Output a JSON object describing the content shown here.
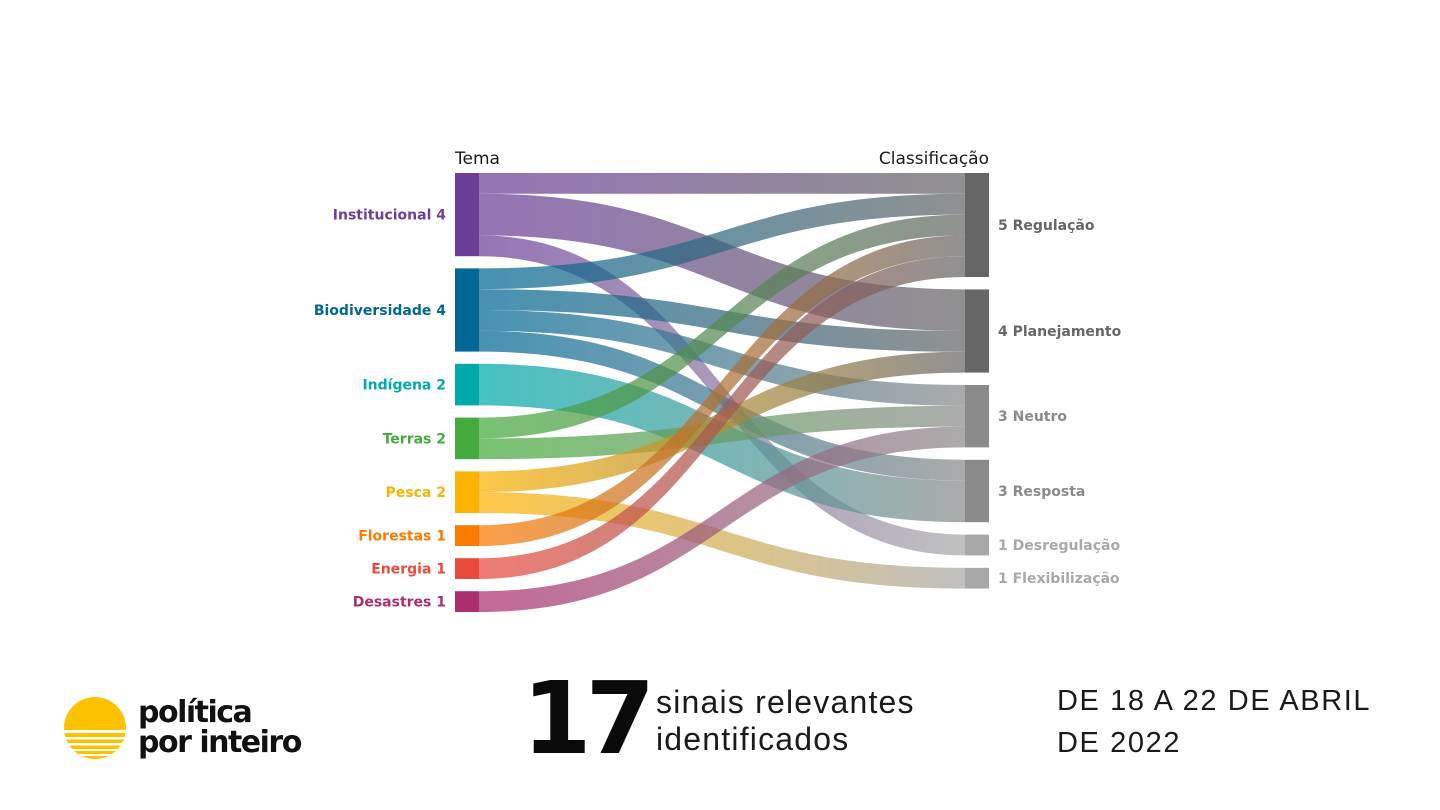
{
  "chart": {
    "left_header": "Tema",
    "right_header": "Classificação",
    "left_nodes": [
      {
        "name": "Institucional",
        "value": 4,
        "color": "#6b3f99"
      },
      {
        "name": "Biodiversidade",
        "value": 4,
        "color": "#006896"
      },
      {
        "name": "Indígena",
        "value": 2,
        "color": "#00aaaa"
      },
      {
        "name": "Terras",
        "value": 2,
        "color": "#44ac3c"
      },
      {
        "name": "Pesca",
        "value": 2,
        "color": "#fcb200"
      },
      {
        "name": "Florestas",
        "value": 1,
        "color": "#fb7a00"
      },
      {
        "name": "Energia",
        "value": 1,
        "color": "#e84a3c"
      },
      {
        "name": "Desastres",
        "value": 1,
        "color": "#ab2f6d"
      }
    ],
    "right_nodes": [
      {
        "name": "Regulação",
        "value": 5,
        "color": "#666666"
      },
      {
        "name": "Planejamento",
        "value": 4,
        "color": "#666666"
      },
      {
        "name": "Neutro",
        "value": 3,
        "color": "#8a8a8a"
      },
      {
        "name": "Resposta",
        "value": 3,
        "color": "#8a8a8a"
      },
      {
        "name": "Desregulação",
        "value": 1,
        "color": "#a8a8a8"
      },
      {
        "name": "Flexibilização",
        "value": 1,
        "color": "#a8a8a8"
      }
    ],
    "links": [
      {
        "source": "Institucional",
        "target": "Regulação",
        "value": 1
      },
      {
        "source": "Institucional",
        "target": "Planejamento",
        "value": 2
      },
      {
        "source": "Institucional",
        "target": "Desregulação",
        "value": 1
      },
      {
        "source": "Biodiversidade",
        "target": "Regulação",
        "value": 1
      },
      {
        "source": "Biodiversidade",
        "target": "Planejamento",
        "value": 1
      },
      {
        "source": "Biodiversidade",
        "target": "Neutro",
        "value": 1
      },
      {
        "source": "Biodiversidade",
        "target": "Resposta",
        "value": 1
      },
      {
        "source": "Indígena",
        "target": "Resposta",
        "value": 2
      },
      {
        "source": "Terras",
        "target": "Regulação",
        "value": 1
      },
      {
        "source": "Terras",
        "target": "Neutro",
        "value": 1
      },
      {
        "source": "Pesca",
        "target": "Planejamento",
        "value": 1
      },
      {
        "source": "Pesca",
        "target": "Flexibilização",
        "value": 1
      },
      {
        "source": "Florestas",
        "target": "Regulação",
        "value": 1
      },
      {
        "source": "Energia",
        "target": "Regulação",
        "value": 1
      },
      {
        "source": "Desastres",
        "target": "Neutro",
        "value": 1
      }
    ]
  },
  "logo": {
    "line1": "política",
    "line2": "por inteiro",
    "sun_color": "#fcc200"
  },
  "stats": {
    "count": "17",
    "line1": "sinais relevantes",
    "line2": "identificados"
  },
  "date": {
    "line1": "DE 18 A 22 DE ABRIL",
    "line2": "DE 2022"
  }
}
